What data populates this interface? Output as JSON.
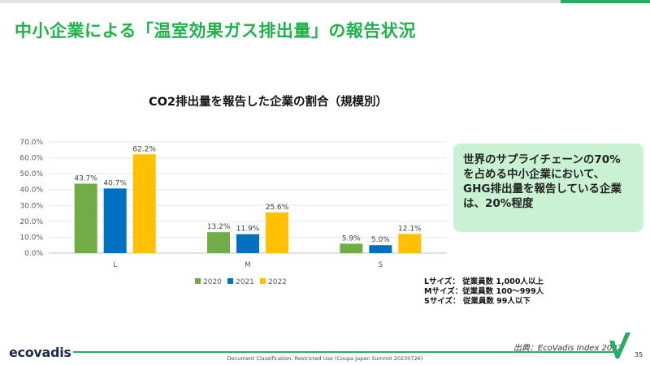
{
  "slide": {
    "title": "中小企業による「温室効果ガス排出量」の報告状況",
    "page_number": "35"
  },
  "chart_data": {
    "type": "bar",
    "title": "CO2排出量を報告した企業の割合（規模別）",
    "categories": [
      "L",
      "M",
      "S"
    ],
    "series": [
      {
        "name": "2020",
        "values": [
          43.7,
          13.2,
          5.9
        ],
        "color": "#70ad47"
      },
      {
        "name": "2021",
        "values": [
          40.7,
          11.9,
          5.0
        ],
        "color": "#0070c0"
      },
      {
        "name": "2022",
        "values": [
          62.2,
          25.6,
          12.1
        ],
        "color": "#ffc000"
      }
    ],
    "y_ticks": [
      "0.0%",
      "10.0%",
      "20.0%",
      "30.0%",
      "40.0%",
      "50.0%",
      "60.0%",
      "70.0%"
    ],
    "ylim": [
      0,
      70
    ],
    "grid": true,
    "legend_position": "bottom"
  },
  "callout": {
    "lines": [
      "世界のサプライチェーンの70%",
      "を占める中小企業において、",
      "GHG排出量を報告している企業",
      "は、20%程度"
    ]
  },
  "size_notes": [
    "Lサイズ： 従業員数 1,000人以上",
    "Mサイズ：従業員数 100〜999人",
    "Sサイズ： 従業員数 99人以下"
  ],
  "footer": {
    "source": "出典：EcoVadis Index 2022",
    "logo_text": "ecovadis",
    "classification": "Document Classification: Restricted Use (Coupa Japan Summit 20230726)"
  },
  "colors": {
    "title_green": "#1db34a",
    "callout_bg": "#c9f2d2",
    "footer_line": "#27ae60"
  }
}
